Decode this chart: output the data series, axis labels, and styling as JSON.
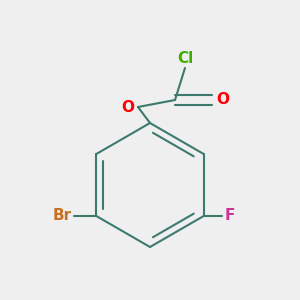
{
  "background_color": "#efefef",
  "bond_color": "#3d7a6e",
  "atom_colors": {
    "Cl": "#3cb000",
    "O": "#ff0000",
    "Br": "#c87020",
    "F": "#cc3399"
  },
  "bond_width": 1.5,
  "font_size": 11,
  "figsize": [
    3.0,
    3.0
  ],
  "dpi": 100
}
